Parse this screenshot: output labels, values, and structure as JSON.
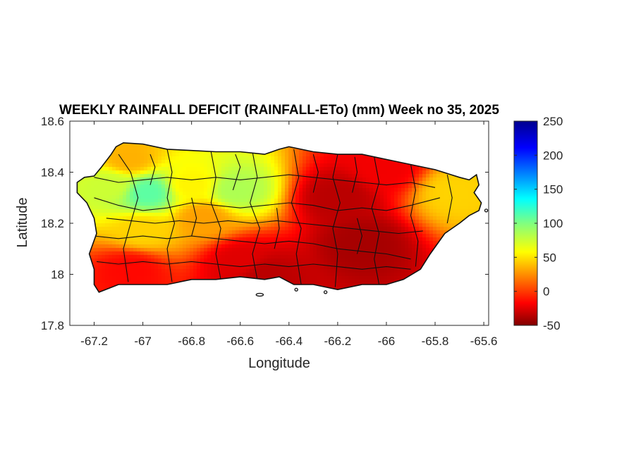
{
  "chart_data": {
    "type": "heatmap",
    "title": "WEEKLY RAINFALL DEFICIT (RAINFALL-ETo) (mm) Week no 35, 2025",
    "xlabel": "Longitude",
    "ylabel": "Latitude",
    "xlim": [
      -67.3,
      -65.58
    ],
    "ylim": [
      17.8,
      18.6
    ],
    "xticks": [
      -67.2,
      -67,
      -66.8,
      -66.6,
      -66.4,
      -66.2,
      -66,
      -65.8,
      -65.6
    ],
    "xtick_labels": [
      "-67.2",
      "-67",
      "-66.8",
      "-66.6",
      "-66.4",
      "-66.2",
      "-66",
      "-65.8",
      "-65.6"
    ],
    "yticks": [
      17.8,
      18,
      18.2,
      18.4,
      18.6
    ],
    "ytick_labels": [
      "17.8",
      "18",
      "18.2",
      "18.4",
      "18.6"
    ],
    "colorbar": {
      "colormap": "jet",
      "clim": [
        -50,
        250
      ],
      "ticks": [
        -50,
        0,
        50,
        100,
        150,
        200,
        250
      ],
      "tick_labels": [
        "-50",
        "0",
        "50",
        "100",
        "150",
        "200",
        "250"
      ]
    },
    "field_features": [
      {
        "region": "west-central interior",
        "lon": -66.98,
        "lat": 18.32,
        "value": 110
      },
      {
        "region": "far west",
        "lon": -67.13,
        "lat": 18.35,
        "value": 75
      },
      {
        "region": "northwest coast",
        "lon": -67.06,
        "lat": 18.45,
        "value": 35
      },
      {
        "region": "north-central interior",
        "lon": -66.62,
        "lat": 18.33,
        "value": 85
      },
      {
        "region": "north-central",
        "lon": -66.8,
        "lat": 18.35,
        "value": 55
      },
      {
        "region": "central",
        "lon": -66.75,
        "lat": 18.22,
        "value": 30
      },
      {
        "region": "southwest interior",
        "lon": -67.0,
        "lat": 18.17,
        "value": 45
      },
      {
        "region": "east coast",
        "lon": -65.72,
        "lat": 18.32,
        "value": 45
      },
      {
        "region": "southeast interior",
        "lon": -66.1,
        "lat": 18.12,
        "value": -40
      },
      {
        "region": "east-central",
        "lon": -66.2,
        "lat": 18.3,
        "value": -35
      },
      {
        "region": "south coast",
        "lon": -66.5,
        "lat": 18.0,
        "value": -35
      },
      {
        "region": "south-central",
        "lon": -66.6,
        "lat": 18.05,
        "value": -25
      },
      {
        "region": "southwest coast",
        "lon": -67.05,
        "lat": 18.02,
        "value": -15
      },
      {
        "region": "northeast coast",
        "lon": -66.0,
        "lat": 18.42,
        "value": -20
      }
    ]
  },
  "colors": {
    "jet_dark_red": "#800000",
    "jet_red": "#ff0000",
    "jet_orange": "#ff8000",
    "jet_yellow": "#ffff00",
    "jet_green": "#80ff80",
    "jet_cyan": "#00ffff",
    "jet_blue": "#0000ff",
    "jet_dark_blue": "#00008f",
    "outline": "#111111"
  }
}
